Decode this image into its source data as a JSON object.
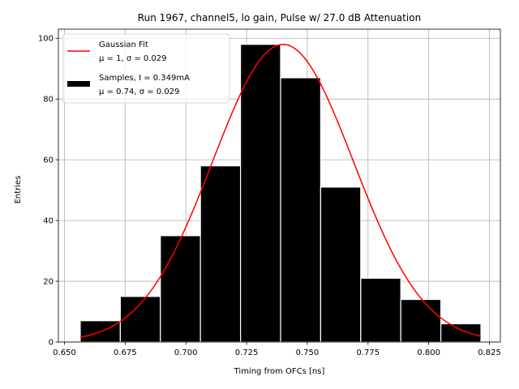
{
  "chart_data": {
    "type": "bar",
    "title": "Run 1967, channel5, lo gain, Pulse w/ 27.0 dB Attenuation",
    "xlabel": "Timing from OFCs [ns]",
    "ylabel": "Entries",
    "xlim": [
      0.6475,
      0.8295
    ],
    "ylim": [
      0,
      103
    ],
    "xticks": [
      0.65,
      0.675,
      0.7,
      0.725,
      0.75,
      0.775,
      0.8,
      0.825
    ],
    "xtick_labels": [
      "0.650",
      "0.675",
      "0.700",
      "0.725",
      "0.750",
      "0.775",
      "0.800",
      "0.825"
    ],
    "yticks": [
      0,
      20,
      40,
      60,
      80,
      100
    ],
    "ytick_labels": [
      "0",
      "20",
      "40",
      "60",
      "80",
      "100"
    ],
    "grid": true,
    "histogram": {
      "bin_edges": [
        0.6565,
        0.673,
        0.6895,
        0.706,
        0.7225,
        0.739,
        0.7555,
        0.772,
        0.7885,
        0.805,
        0.8215
      ],
      "counts": [
        7,
        15,
        35,
        58,
        98,
        87,
        51,
        21,
        14,
        6
      ],
      "color": "#000000"
    },
    "fit": {
      "type": "gaussian",
      "mean": 0.74,
      "sigma": 0.029,
      "amplitude": 98,
      "x_range": [
        0.6565,
        0.8215
      ],
      "color": "#ff0000"
    },
    "legend": {
      "position": "upper-left",
      "entries": [
        {
          "line1": "Gaussian Fit",
          "line2": "μ = 1, σ = 0.029",
          "kind": "line",
          "color": "#ff0000"
        },
        {
          "line1": "Samples, I = 0.349mA",
          "line2": "μ = 0.74, σ = 0.029",
          "kind": "patch",
          "color": "#000000"
        }
      ]
    }
  }
}
